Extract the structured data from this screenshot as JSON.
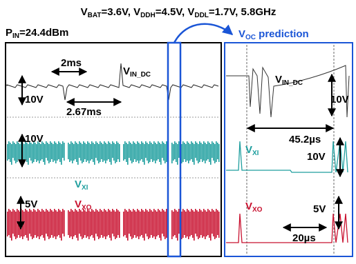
{
  "header": {
    "title": [
      {
        "base": "V",
        "sub": "BAT",
        "after": "=3.6V, "
      },
      {
        "base": "V",
        "sub": "DDH",
        "after": "=4.5V, "
      },
      {
        "base": "V",
        "sub": "DDL",
        "after": "=1.7V, 5.8GHz"
      }
    ],
    "input_power": {
      "base": "P",
      "sub": "IN",
      "after": "=24.4dBm"
    },
    "prediction": {
      "base": "V",
      "sub": "OC",
      "after": " prediction"
    }
  },
  "left_panel": {
    "period": "2ms",
    "gap": "2.67ms",
    "vin": {
      "base": "V",
      "sub": "IN_DC",
      "after": ""
    },
    "vin_scale": "10V",
    "vxi_scale": "10V",
    "vxi": {
      "base": "V",
      "sub": "XI",
      "after": ""
    },
    "vxo_scale": "5V",
    "vxo": {
      "base": "V",
      "sub": "XO",
      "after": ""
    }
  },
  "right_panel": {
    "vin": {
      "base": "V",
      "sub": "IN_DC",
      "after": ""
    },
    "vin_scale": "10V",
    "duration": "45.2µs",
    "vxi": {
      "base": "V",
      "sub": "XI",
      "after": ""
    },
    "vxi_scale": "10V",
    "vxo": {
      "base": "V",
      "sub": "XO",
      "after": ""
    },
    "vxo_scale": "5V",
    "time_scale": "20µs"
  }
}
